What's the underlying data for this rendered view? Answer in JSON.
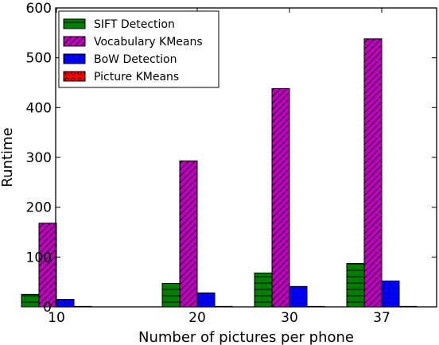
{
  "chart_data": {
    "type": "bar",
    "categories": [
      "10",
      "20",
      "30",
      "37"
    ],
    "series": [
      {
        "name": "SIFT Detection",
        "color": "#008000",
        "pattern": "horizontal-lines",
        "values": [
          25,
          47,
          68,
          87
        ]
      },
      {
        "name": "Vocabulary KMeans",
        "color": "#bf00bf",
        "pattern": "diagonal-hatch",
        "values": [
          168,
          293,
          438,
          538
        ]
      },
      {
        "name": "BoW Detection",
        "color": "#0000ff",
        "pattern": "dots",
        "values": [
          15,
          28,
          41,
          52
        ]
      },
      {
        "name": "Picture KMeans",
        "color": "#ff0000",
        "pattern": "circles",
        "values": [
          1,
          1,
          1,
          1
        ]
      }
    ],
    "title": "",
    "xlabel": "Number of pictures per phone",
    "ylabel": "Runtime",
    "ylim": [
      0,
      600
    ],
    "yticks": [
      "0",
      "100",
      "200",
      "300",
      "400",
      "500",
      "600"
    ],
    "grid": false,
    "legend_position": "top-left"
  }
}
